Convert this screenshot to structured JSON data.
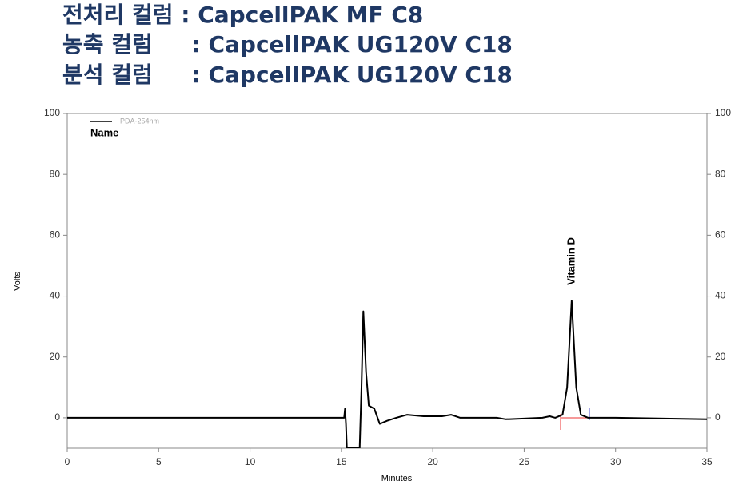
{
  "header": {
    "lines": [
      "전처리 컬럼 : CapcellPAK MF C8",
      "농축 컬럼     : CapcellPAK UG120V C18",
      "분석 컬럼     : CapcellPAK UG120V C18"
    ]
  },
  "chart_data": {
    "type": "line",
    "x_label": "Minutes",
    "y_label": "Volts",
    "legend_title": "Name",
    "peak_label": "Vitamin D",
    "x": [
      0,
      5,
      10,
      15,
      15.15,
      15.2,
      15.25,
      15.3,
      16.0,
      16.1,
      16.2,
      16.35,
      16.5,
      16.8,
      17.1,
      17.5,
      18.0,
      18.6,
      19.5,
      20.5,
      21.0,
      21.5,
      23.5,
      24.0,
      26.0,
      26.4,
      26.7,
      27.1,
      27.35,
      27.6,
      27.85,
      28.1,
      28.5,
      30,
      35
    ],
    "series": [
      {
        "name": "PDA-254nm",
        "color": "#000000",
        "values": [
          0,
          0,
          0,
          0,
          0,
          3,
          -2,
          -10,
          -10,
          10,
          35,
          15,
          4,
          3,
          -2,
          -1,
          0,
          1,
          0.5,
          0.5,
          1,
          0,
          0,
          -0.5,
          0,
          0.5,
          0,
          1,
          10,
          38.5,
          10,
          1,
          0,
          0,
          -0.5
        ]
      }
    ],
    "xlim": [
      0,
      35
    ],
    "xticks": [
      0,
      5,
      10,
      15,
      20,
      25,
      30,
      35
    ],
    "ylim": [
      -10,
      100
    ],
    "yticks": [
      0,
      20,
      40,
      60,
      80,
      100
    ],
    "y2lim": [
      -10,
      100
    ],
    "y2ticks": [
      0,
      20,
      40,
      60,
      80,
      100
    ]
  }
}
